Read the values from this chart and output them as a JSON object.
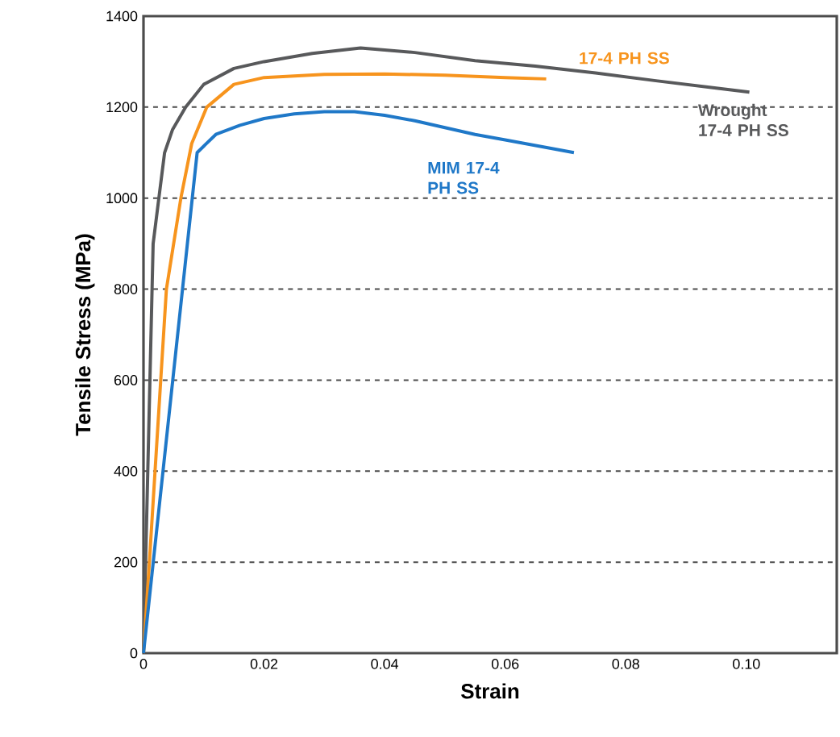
{
  "chart_data": {
    "type": "line",
    "xlabel": "Strain",
    "ylabel": "Tensile Stress (MPa)",
    "xlim": [
      0,
      0.115
    ],
    "ylim": [
      0,
      1400
    ],
    "xticks": [
      {
        "value": 0,
        "label": "0"
      },
      {
        "value": 0.02,
        "label": "0.02"
      },
      {
        "value": 0.04,
        "label": "0.04"
      },
      {
        "value": 0.06,
        "label": "0.06"
      },
      {
        "value": 0.08,
        "label": "0.08"
      },
      {
        "value": 0.1,
        "label": "0.10"
      }
    ],
    "yticks": [
      0,
      200,
      400,
      600,
      800,
      1000,
      1200,
      1400
    ],
    "grid": "y",
    "line_style": "solid",
    "marker": "none",
    "series": [
      {
        "name": "Wrought 17-4 PH SS",
        "color": "#58595b",
        "x": [
          0,
          0.0016,
          0.0035,
          0.0048,
          0.007,
          0.01,
          0.015,
          0.02,
          0.028,
          0.036,
          0.045,
          0.055,
          0.065,
          0.075,
          0.085,
          0.095,
          0.1005
        ],
        "values": [
          0,
          900,
          1100,
          1150,
          1200,
          1250,
          1285,
          1300,
          1318,
          1330,
          1320,
          1302,
          1290,
          1275,
          1258,
          1242,
          1233
        ]
      },
      {
        "name": "17-4 PH SS",
        "color": "#f7941d",
        "x": [
          0,
          0.001,
          0.0038,
          0.0062,
          0.008,
          0.0105,
          0.015,
          0.02,
          0.03,
          0.04,
          0.05,
          0.06,
          0.0668
        ],
        "values": [
          0,
          205,
          800,
          1000,
          1120,
          1200,
          1250,
          1265,
          1272,
          1273,
          1270,
          1265,
          1262
        ]
      },
      {
        "name": "MIM 17-4 PH SS",
        "color": "#1f78c8",
        "x": [
          0,
          0.0089,
          0.012,
          0.016,
          0.02,
          0.025,
          0.03,
          0.035,
          0.04,
          0.045,
          0.05,
          0.055,
          0.06,
          0.0714
        ],
        "values": [
          0,
          1100,
          1140,
          1160,
          1175,
          1185,
          1190,
          1190,
          1182,
          1170,
          1155,
          1140,
          1128,
          1100
        ]
      }
    ]
  }
}
